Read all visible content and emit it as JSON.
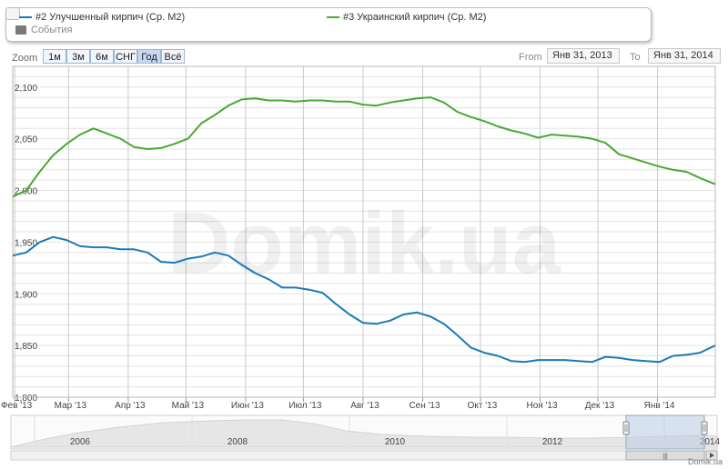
{
  "legend": {
    "series2": "#2 Улучшенный кирпич (Ср. М2)",
    "series3": "#3 Украинский кирпич (Ср. М2)",
    "events": "События"
  },
  "zoom": {
    "label": "Zoom",
    "buttons": [
      "1м",
      "3м",
      "6м",
      "СНГ",
      "Год",
      "Всё"
    ],
    "active": "Год"
  },
  "range": {
    "from_label": "From",
    "from_value": "Янв 31, 2013",
    "to_label": "To",
    "to_value": "Янв 31, 2014"
  },
  "watermark": "Domik.ua",
  "credit": "Domik.ua",
  "colors": {
    "series2": "#1a7ab8",
    "series3": "#4aa834",
    "navigator": "#b9cde3"
  },
  "chart_data": {
    "type": "line",
    "x_tick_labels": [
      "Фев '13",
      "Мар '13",
      "Апр '13",
      "Май '13",
      "Июн '13",
      "Июл '13",
      "Авг '13",
      "Сен '13",
      "Окт '13",
      "Ноя '13",
      "Дек '13",
      "Янв '14"
    ],
    "y_tick_labels": [
      "1,800",
      "1,850",
      "1,900",
      "1,950",
      "2,000",
      "2,050",
      "2,100"
    ],
    "ylim": [
      1800,
      2120
    ],
    "x": [
      "2013-01-31",
      "2013-02-07",
      "2013-02-14",
      "2013-02-21",
      "2013-02-28",
      "2013-03-07",
      "2013-03-14",
      "2013-03-21",
      "2013-03-28",
      "2013-04-04",
      "2013-04-11",
      "2013-04-18",
      "2013-04-25",
      "2013-05-02",
      "2013-05-09",
      "2013-05-16",
      "2013-05-23",
      "2013-05-30",
      "2013-06-06",
      "2013-06-13",
      "2013-06-20",
      "2013-06-27",
      "2013-07-04",
      "2013-07-11",
      "2013-07-18",
      "2013-07-25",
      "2013-08-01",
      "2013-08-08",
      "2013-08-15",
      "2013-08-22",
      "2013-08-29",
      "2013-09-05",
      "2013-09-12",
      "2013-09-19",
      "2013-09-26",
      "2013-10-03",
      "2013-10-10",
      "2013-10-17",
      "2013-10-24",
      "2013-10-31",
      "2013-11-07",
      "2013-11-14",
      "2013-11-21",
      "2013-11-28",
      "2013-12-05",
      "2013-12-12",
      "2013-12-19",
      "2013-12-26",
      "2014-01-02",
      "2014-01-09",
      "2014-01-16",
      "2014-01-23",
      "2014-01-31"
    ],
    "series": [
      {
        "name": "#2 Улучшенный кирпич (Ср. М2)",
        "color": "#1a7ab8",
        "values": [
          1937,
          1940,
          1950,
          1955,
          1952,
          1946,
          1945,
          1945,
          1943,
          1943,
          1940,
          1931,
          1930,
          1934,
          1936,
          1940,
          1937,
          1928,
          1920,
          1914,
          1906,
          1906,
          1904,
          1901,
          1890,
          1880,
          1872,
          1871,
          1874,
          1880,
          1882,
          1878,
          1871,
          1860,
          1848,
          1843,
          1840,
          1835,
          1834,
          1836,
          1836,
          1836,
          1835,
          1834,
          1839,
          1838,
          1836,
          1835,
          1834,
          1840,
          1841,
          1843,
          1850
        ]
      },
      {
        "name": "#3 Украинский кирпич (Ср. М2)",
        "color": "#4aa834",
        "values": [
          1994,
          2000,
          2018,
          2034,
          2045,
          2054,
          2060,
          2055,
          2050,
          2042,
          2040,
          2041,
          2045,
          2050,
          2065,
          2073,
          2082,
          2088,
          2089,
          2087,
          2087,
          2086,
          2087,
          2087,
          2086,
          2086,
          2083,
          2082,
          2085,
          2087,
          2089,
          2090,
          2085,
          2076,
          2071,
          2067,
          2062,
          2058,
          2055,
          2051,
          2054,
          2053,
          2052,
          2050,
          2046,
          2035,
          2031,
          2027,
          2023,
          2020,
          2018,
          2012,
          2006
        ]
      }
    ],
    "navigator": {
      "labels": [
        "2006",
        "2008",
        "2010",
        "2012",
        "2014"
      ],
      "handle_label": "|||"
    },
    "grid": true
  }
}
